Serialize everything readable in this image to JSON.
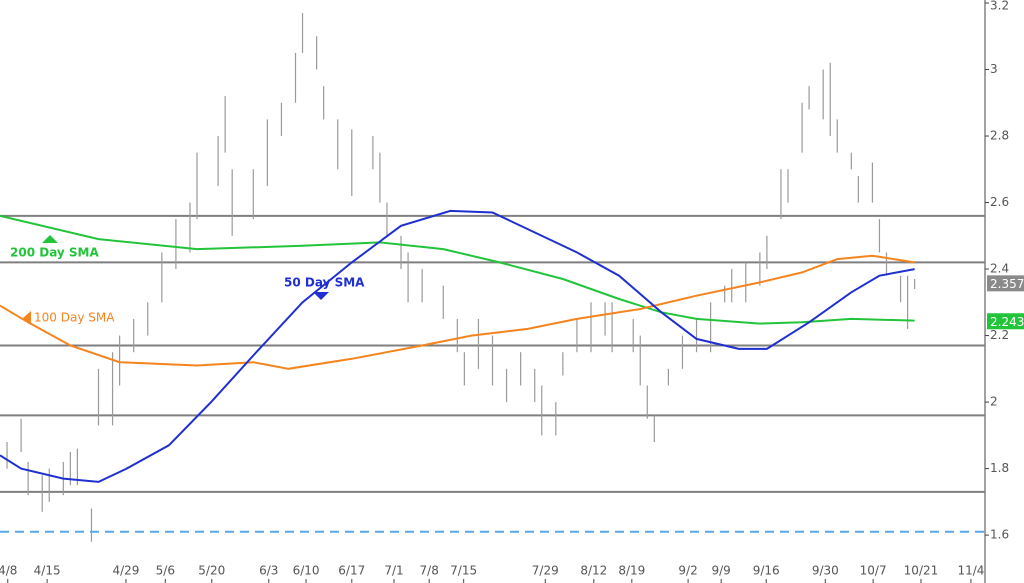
{
  "chart_data": {
    "type": "ohlc",
    "xlim": [
      0,
      140
    ],
    "ylim": [
      1.456,
      3.209
    ],
    "xticks": [
      {
        "value": 1.1,
        "label": "4/8"
      },
      {
        "value": 6.7,
        "label": "4/15"
      },
      {
        "value": 17.9,
        "label": "4/29"
      },
      {
        "value": 23.5,
        "label": "5/6"
      },
      {
        "value": 30.1,
        "label": "5/20"
      },
      {
        "value": 38.2,
        "label": "6/3"
      },
      {
        "value": 43.5,
        "label": "6/10"
      },
      {
        "value": 50.0,
        "label": "6/17"
      },
      {
        "value": 56.0,
        "label": "7/1"
      },
      {
        "value": 61.0,
        "label": "7/8"
      },
      {
        "value": 65.9,
        "label": "7/15"
      },
      {
        "value": 77.5,
        "label": "7/29"
      },
      {
        "value": 84.4,
        "label": "8/12"
      },
      {
        "value": 89.8,
        "label": "8/19"
      },
      {
        "value": 97.8,
        "label": "9/2"
      },
      {
        "value": 102.5,
        "label": "9/9"
      },
      {
        "value": 108.9,
        "label": "9/16"
      },
      {
        "value": 117.3,
        "label": "9/30"
      },
      {
        "value": 124.1,
        "label": "10/7"
      },
      {
        "value": 130.9,
        "label": "10/21"
      },
      {
        "value": 138.0,
        "label": "11/4"
      }
    ],
    "yticks": [
      1.6,
      1.8,
      2,
      2.2,
      2.4,
      2.6,
      2.8,
      3,
      3.2
    ],
    "bar_color": "#9a9a9a",
    "bars": {
      "x": [
        1,
        3,
        4,
        6,
        7,
        9,
        10,
        11,
        13,
        14,
        16,
        17,
        19,
        21,
        23,
        25,
        27,
        28,
        31,
        32,
        33,
        36,
        38,
        40,
        42,
        43,
        45,
        46,
        48,
        50,
        53,
        54,
        55,
        57,
        58,
        60,
        63,
        65,
        66,
        68,
        70,
        72,
        74,
        76,
        77,
        79,
        80,
        82,
        84,
        86,
        87,
        90,
        91,
        92,
        93,
        95,
        97,
        99,
        101,
        103,
        104,
        106,
        108,
        109,
        111,
        112,
        114,
        115,
        117,
        118,
        119,
        121,
        122,
        124,
        125,
        126,
        128,
        129,
        130
      ],
      "low": [
        1.8,
        1.85,
        1.72,
        1.67,
        1.7,
        1.72,
        1.75,
        1.75,
        1.58,
        1.93,
        1.93,
        2.05,
        2.15,
        2.2,
        2.3,
        2.4,
        2.45,
        2.55,
        2.65,
        2.75,
        2.5,
        2.55,
        2.65,
        2.8,
        2.9,
        3.05,
        3.0,
        2.85,
        2.7,
        2.62,
        2.7,
        2.6,
        2.5,
        2.4,
        2.3,
        2.3,
        2.25,
        2.15,
        2.05,
        2.1,
        2.05,
        2.0,
        2.05,
        2.0,
        1.9,
        1.9,
        2.08,
        2.15,
        2.15,
        2.2,
        2.15,
        2.15,
        2.05,
        1.95,
        1.88,
        2.05,
        2.1,
        2.15,
        2.15,
        2.3,
        2.3,
        2.3,
        2.35,
        2.4,
        2.55,
        2.6,
        2.75,
        2.88,
        2.85,
        2.8,
        2.75,
        2.7,
        2.6,
        2.6,
        2.45,
        2.38,
        2.3,
        2.22,
        2.34
      ],
      "high": [
        1.88,
        1.95,
        1.82,
        1.78,
        1.8,
        1.82,
        1.85,
        1.86,
        1.68,
        2.1,
        2.15,
        2.2,
        2.25,
        2.3,
        2.45,
        2.55,
        2.6,
        2.75,
        2.8,
        2.92,
        2.7,
        2.7,
        2.85,
        2.9,
        3.05,
        3.17,
        3.1,
        2.95,
        2.85,
        2.82,
        2.8,
        2.75,
        2.6,
        2.5,
        2.45,
        2.4,
        2.35,
        2.25,
        2.15,
        2.25,
        2.2,
        2.1,
        2.15,
        2.1,
        2.05,
        2.0,
        2.15,
        2.25,
        2.3,
        2.3,
        2.3,
        2.25,
        2.2,
        2.05,
        1.96,
        2.1,
        2.2,
        2.25,
        2.3,
        2.35,
        2.4,
        2.42,
        2.45,
        2.5,
        2.7,
        2.7,
        2.9,
        2.95,
        3.0,
        3.02,
        2.85,
        2.75,
        2.68,
        2.72,
        2.55,
        2.45,
        2.38,
        2.38,
        2.37
      ]
    },
    "lines": [
      {
        "name": "200 Day SMA",
        "color": "#22c43a",
        "x": [
          0,
          14,
          28,
          43,
          54,
          63,
          71,
          80,
          88,
          94,
          99,
          108,
          114,
          121,
          130
        ],
        "values": [
          2.56,
          2.49,
          2.46,
          2.47,
          2.48,
          2.46,
          2.42,
          2.37,
          2.31,
          2.27,
          2.25,
          2.236,
          2.24,
          2.25,
          2.245
        ]
      },
      {
        "name": "100  Day SMA",
        "color": "#f5841f",
        "x": [
          0,
          4,
          10,
          17,
          28,
          36,
          41,
          50,
          60,
          67,
          75,
          82,
          91,
          99,
          108,
          114,
          119,
          124,
          130
        ],
        "values": [
          2.29,
          2.24,
          2.17,
          2.12,
          2.11,
          2.12,
          2.1,
          2.13,
          2.17,
          2.2,
          2.22,
          2.25,
          2.28,
          2.32,
          2.36,
          2.39,
          2.43,
          2.44,
          2.42
        ]
      },
      {
        "name": "50 Day SMA",
        "color": "#1f2fd0",
        "x": [
          0,
          3,
          9,
          14,
          18,
          24,
          30,
          36,
          43,
          50,
          57,
          64,
          70,
          75,
          82,
          88,
          94,
          99,
          105,
          109,
          115,
          121,
          125,
          130
        ],
        "values": [
          1.84,
          1.8,
          1.77,
          1.76,
          1.8,
          1.87,
          2.0,
          2.14,
          2.3,
          2.42,
          2.53,
          2.575,
          2.57,
          2.52,
          2.45,
          2.38,
          2.27,
          2.19,
          2.16,
          2.16,
          2.24,
          2.33,
          2.38,
          2.4
        ]
      }
    ],
    "levels": [
      2.56,
      2.42,
      2.17,
      1.96,
      1.73
    ],
    "level_color": "#7f7f7f",
    "dashed_level": 1.61,
    "dashed_color": "#5aa7e8",
    "last_price": 2.357,
    "last_price_color": "#8a8a8a",
    "sma_last": 2.243,
    "sma_last_color": "#22c43a"
  }
}
